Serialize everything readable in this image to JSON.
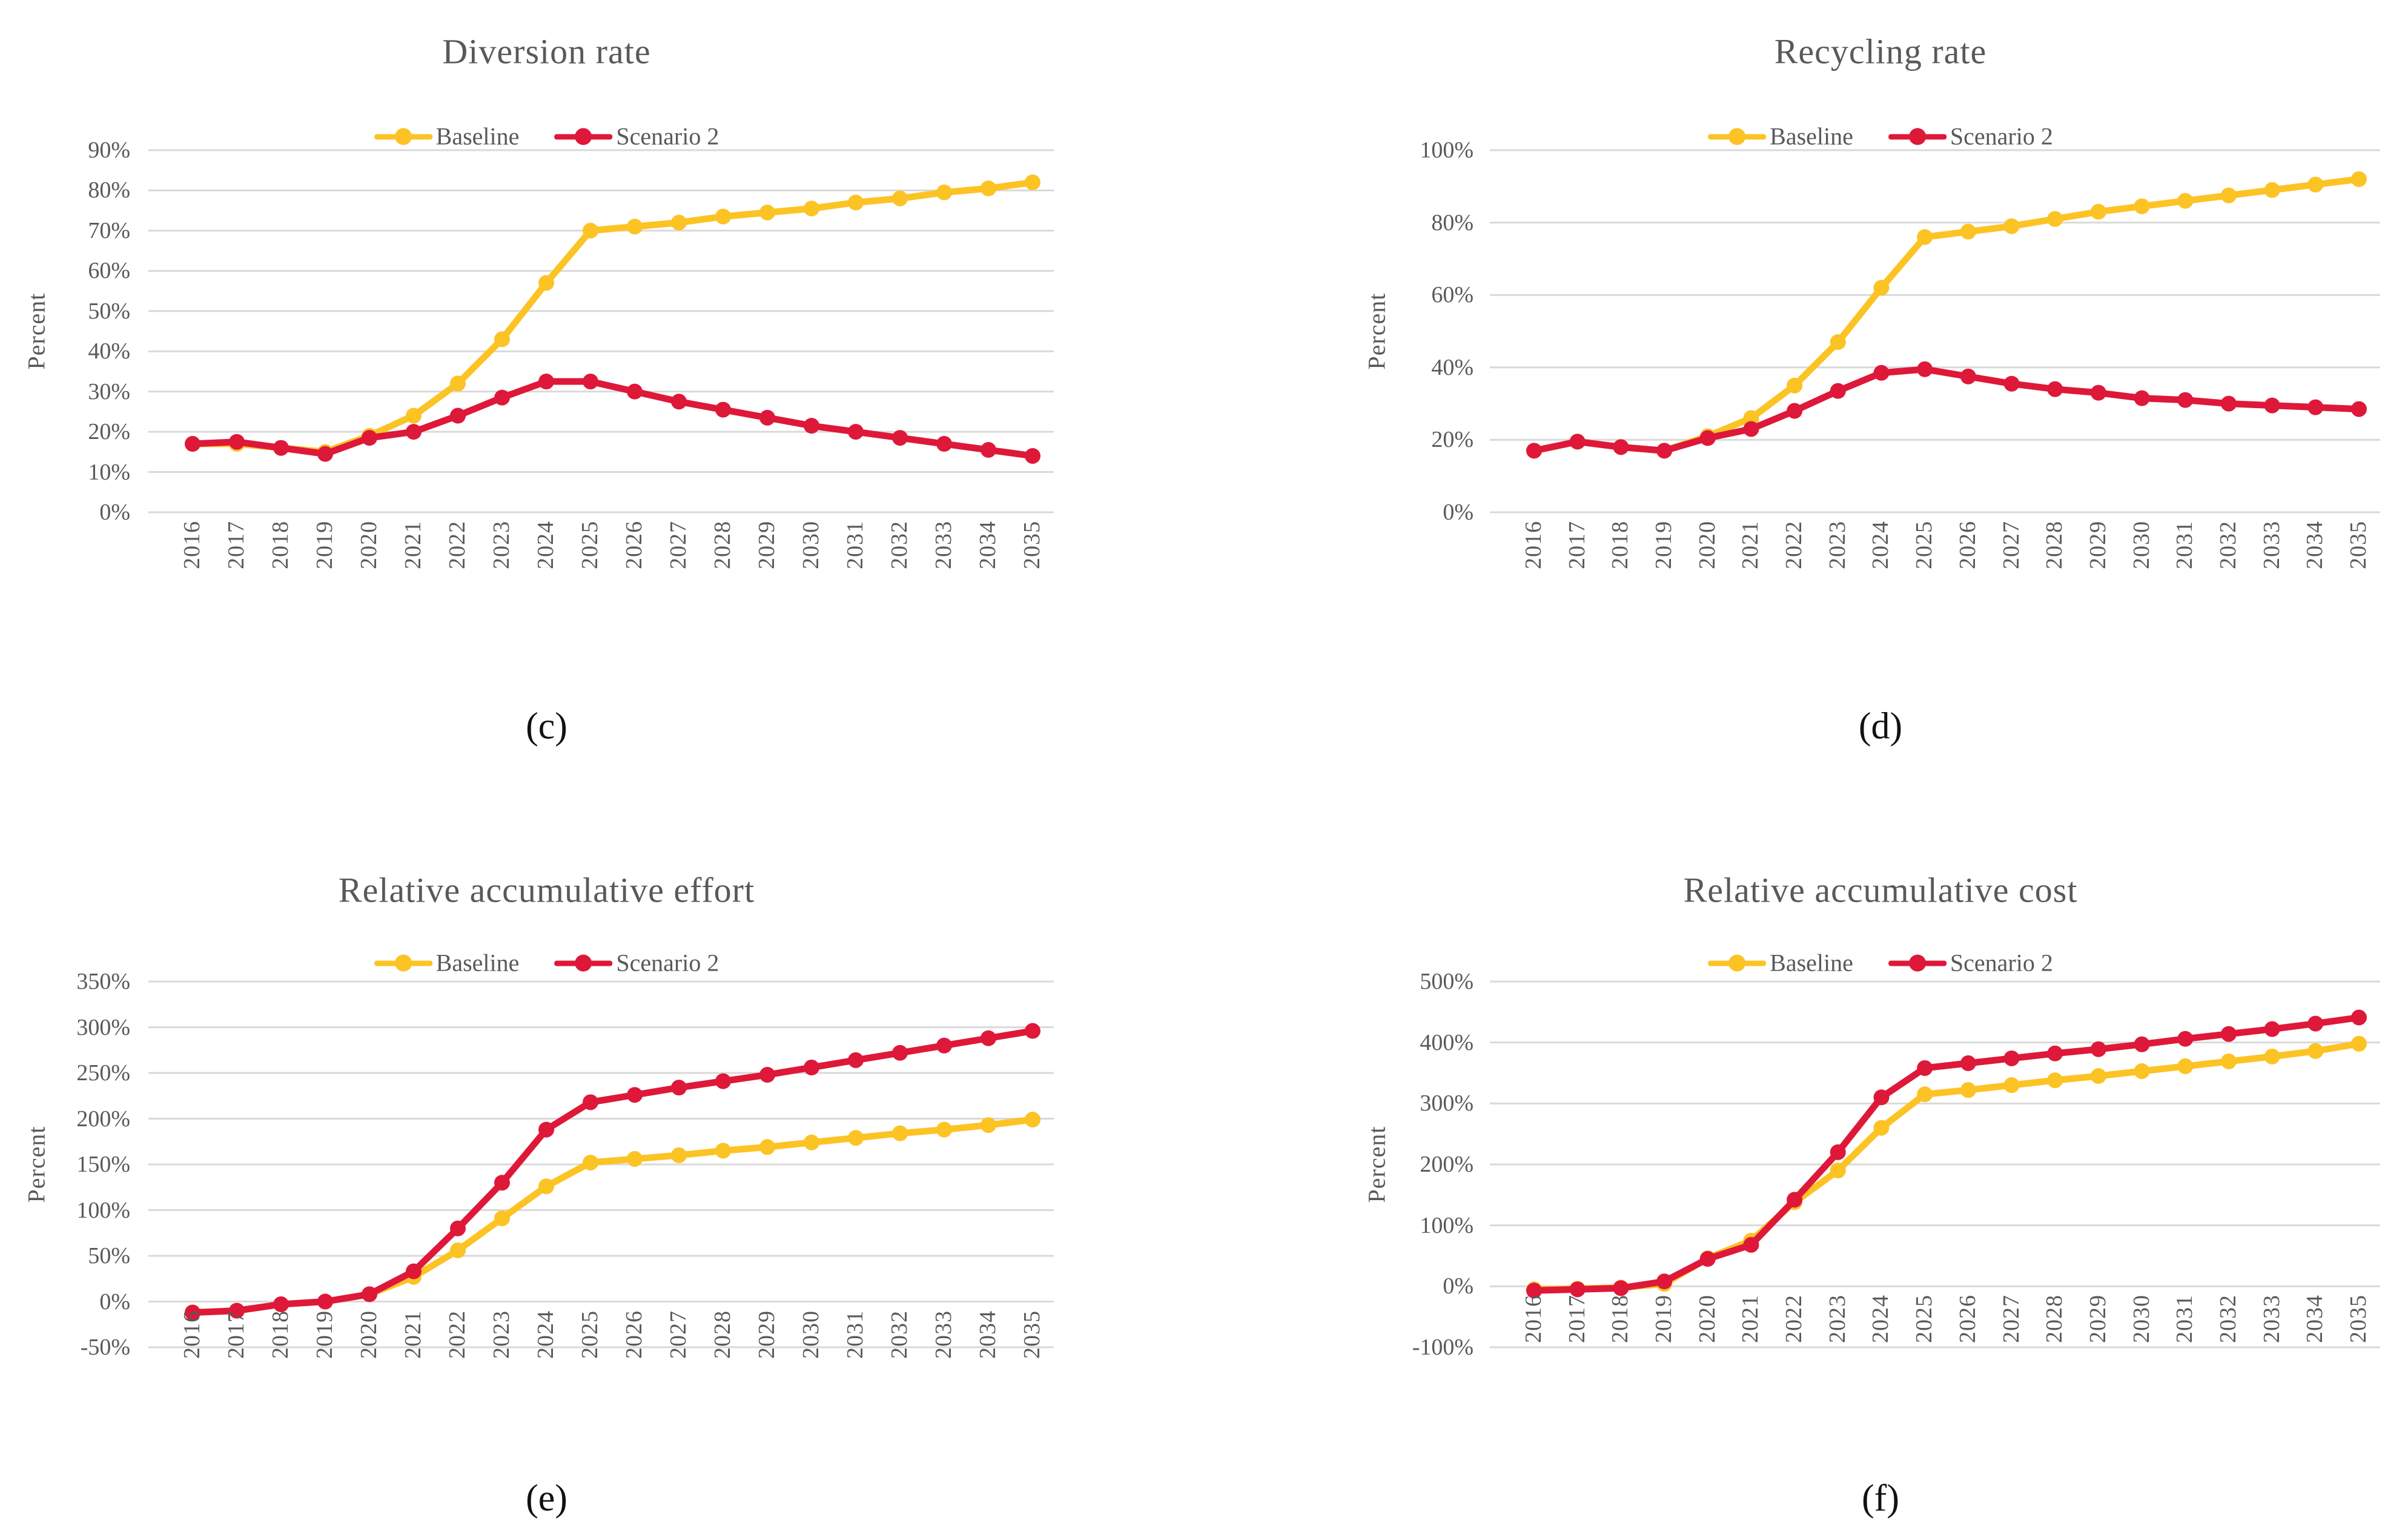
{
  "figure": {
    "background": "#ffffff",
    "grid_color": "#d9d9d9",
    "axis_text_color": "#595959",
    "caption_color": "#111111",
    "baseline_color": "#fcc324",
    "scenario2_color": "#de1839"
  },
  "chart_data": [
    {
      "type": "line",
      "title": "Diversion rate",
      "caption": "(c)",
      "xlabel": "",
      "ylabel": "Percent",
      "grid": true,
      "legend_position": "top",
      "ylim": [
        0,
        90
      ],
      "ytick_step": 10,
      "y_tick_values": [
        90,
        80,
        70,
        60,
        50,
        40,
        30,
        20,
        10,
        0
      ],
      "y_ticks": [
        "90%",
        "80%",
        "70%",
        "60%",
        "50%",
        "40%",
        "30%",
        "20%",
        "10%",
        "0%"
      ],
      "x": [
        2016,
        2017,
        2018,
        2019,
        2020,
        2021,
        2022,
        2023,
        2024,
        2025,
        2026,
        2027,
        2028,
        2029,
        2030,
        2031,
        2032,
        2033,
        2034,
        2035
      ],
      "series": [
        {
          "name": "Baseline",
          "color": "#fcc324",
          "values": [
            17,
            17,
            16,
            15,
            19,
            24,
            32,
            43,
            57,
            70,
            71,
            72,
            73.5,
            74.5,
            75.5,
            77,
            78,
            79.5,
            80.5,
            82
          ]
        },
        {
          "name": "Scenario 2",
          "color": "#de1839",
          "values": [
            17,
            17.5,
            16,
            14.5,
            18.5,
            20,
            24,
            28.5,
            32.5,
            32.5,
            30,
            27.5,
            25.5,
            23.5,
            21.5,
            20,
            18.5,
            17,
            15.5,
            14
          ]
        }
      ]
    },
    {
      "type": "line",
      "title": "Recycling rate",
      "caption": "(d)",
      "xlabel": "",
      "ylabel": "Percent",
      "grid": true,
      "legend_position": "top",
      "ylim": [
        0,
        100
      ],
      "ytick_step": 20,
      "y_tick_values": [
        100,
        80,
        60,
        40,
        20,
        0
      ],
      "y_ticks": [
        "100%",
        "80%",
        "60%",
        "40%",
        "20%",
        "0%"
      ],
      "x": [
        2016,
        2017,
        2018,
        2019,
        2020,
        2021,
        2022,
        2023,
        2024,
        2025,
        2026,
        2027,
        2028,
        2029,
        2030,
        2031,
        2032,
        2033,
        2034,
        2035
      ],
      "series": [
        {
          "name": "Baseline",
          "color": "#fcc324",
          "values": [
            17,
            19.5,
            18,
            17,
            21,
            26,
            35,
            47,
            62,
            76,
            77.5,
            79,
            81,
            83,
            84.5,
            86,
            87.5,
            89,
            90.5,
            92
          ]
        },
        {
          "name": "Scenario 2",
          "color": "#de1839",
          "values": [
            17,
            19.5,
            18,
            17,
            20.5,
            23,
            28,
            33.5,
            38.5,
            39.5,
            37.5,
            35.5,
            34,
            33,
            31.5,
            31,
            30,
            29.5,
            29,
            28.5
          ]
        }
      ]
    },
    {
      "type": "line",
      "title": "Relative accumulative effort",
      "caption": "(e)",
      "xlabel": "",
      "ylabel": "Percent",
      "grid": true,
      "legend_position": "top",
      "ylim": [
        -50,
        350
      ],
      "ytick_step": 50,
      "y_tick_values": [
        350,
        300,
        250,
        200,
        150,
        100,
        50,
        0,
        -50
      ],
      "y_ticks": [
        "350%",
        "300%",
        "250%",
        "200%",
        "150%",
        "100%",
        "50%",
        "0%",
        "-50%"
      ],
      "x": [
        2016,
        2017,
        2018,
        2019,
        2020,
        2021,
        2022,
        2023,
        2024,
        2025,
        2026,
        2027,
        2028,
        2029,
        2030,
        2031,
        2032,
        2033,
        2034,
        2035
      ],
      "series": [
        {
          "name": "Baseline",
          "color": "#fcc324",
          "values": [
            -12,
            -10,
            -3,
            0,
            8,
            27,
            56,
            91,
            126,
            152,
            156,
            160,
            165,
            169,
            174,
            179,
            184,
            188,
            193,
            199
          ]
        },
        {
          "name": "Scenario 2",
          "color": "#de1839",
          "values": [
            -12,
            -10,
            -3,
            0,
            8,
            33,
            80,
            130,
            188,
            218,
            226,
            234,
            241,
            248,
            256,
            264,
            272,
            280,
            288,
            296
          ]
        }
      ]
    },
    {
      "type": "line",
      "title": "Relative accumulative cost",
      "caption": "(f)",
      "xlabel": "",
      "ylabel": "Percent",
      "grid": true,
      "legend_position": "top",
      "ylim": [
        -100,
        500
      ],
      "ytick_step": 100,
      "y_tick_values": [
        500,
        400,
        300,
        200,
        100,
        0,
        -100
      ],
      "y_ticks": [
        "500%",
        "400%",
        "300%",
        "200%",
        "100%",
        "0%",
        "-100%"
      ],
      "x": [
        2016,
        2017,
        2018,
        2019,
        2020,
        2021,
        2022,
        2023,
        2024,
        2025,
        2026,
        2027,
        2028,
        2029,
        2030,
        2031,
        2032,
        2033,
        2034,
        2035
      ],
      "series": [
        {
          "name": "Baseline",
          "color": "#fcc324",
          "values": [
            -5,
            -4,
            -2,
            4,
            46,
            75,
            138,
            190,
            260,
            315,
            322,
            330,
            338,
            345,
            353,
            361,
            369,
            377,
            386,
            398
          ]
        },
        {
          "name": "Scenario 2",
          "color": "#de1839",
          "values": [
            -7,
            -5,
            -3,
            8,
            45,
            68,
            142,
            220,
            310,
            358,
            366,
            374,
            382,
            389,
            397,
            406,
            414,
            422,
            431,
            441
          ]
        }
      ]
    }
  ]
}
